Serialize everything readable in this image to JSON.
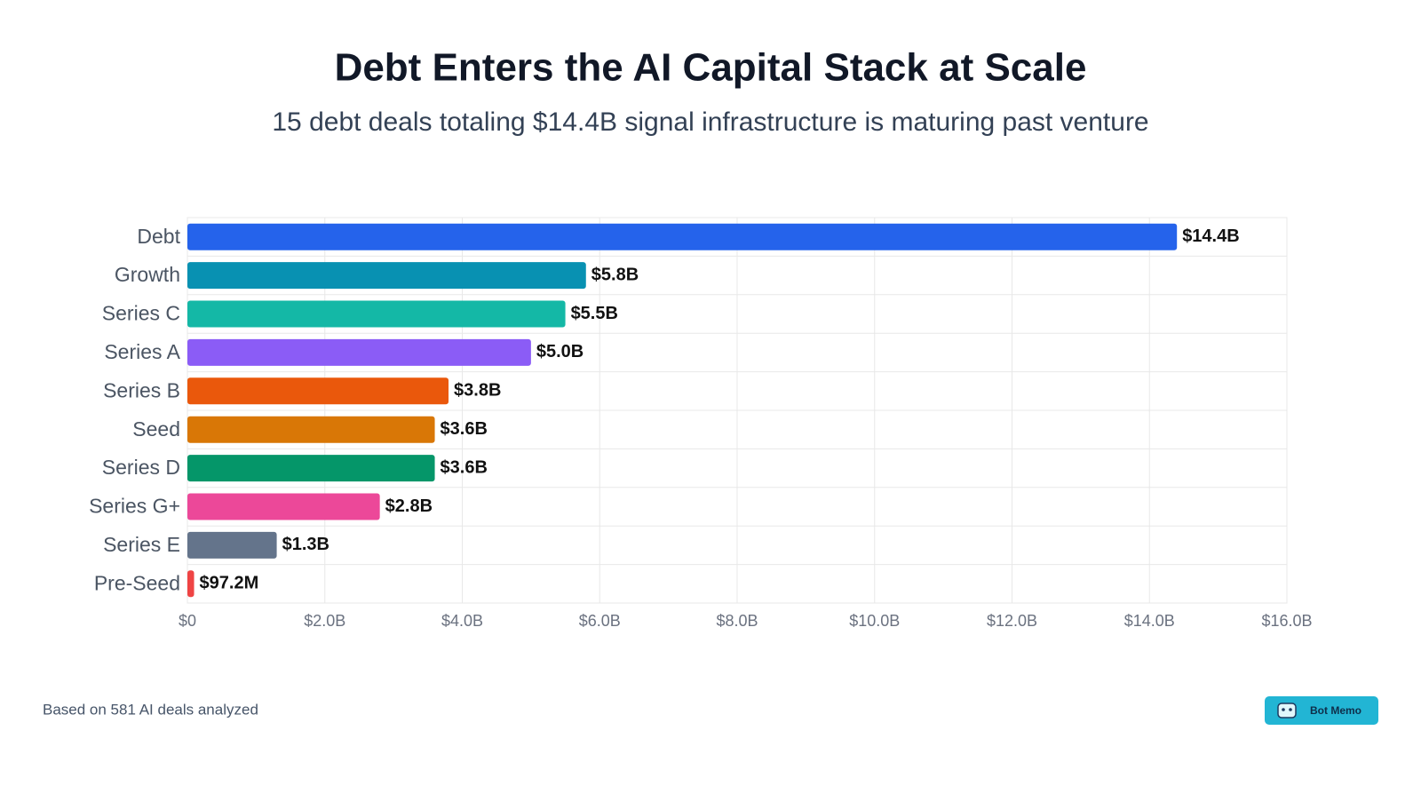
{
  "chart_data": {
    "type": "bar",
    "orientation": "horizontal",
    "title": "Debt Enters the AI Capital Stack at Scale",
    "subtitle": "15 debt deals totaling $14.4B signal infrastructure is maturing past venture",
    "categories": [
      "Debt",
      "Growth",
      "Series C",
      "Series A",
      "Series B",
      "Seed",
      "Series D",
      "Series G+",
      "Series E",
      "Pre-Seed"
    ],
    "values": [
      14.4,
      5.8,
      5.5,
      5.0,
      3.8,
      3.6,
      3.6,
      2.8,
      1.3,
      0.0972
    ],
    "value_labels": [
      "$14.4B",
      "$5.8B",
      "$5.5B",
      "$5.0B",
      "$3.8B",
      "$3.6B",
      "$3.6B",
      "$2.8B",
      "$1.3B",
      "$97.2M"
    ],
    "colors": [
      "#2563eb",
      "#0891b2",
      "#14b8a6",
      "#8b5cf6",
      "#ea580c",
      "#d97706",
      "#059669",
      "#ec4899",
      "#64748b",
      "#ef4444"
    ],
    "xlim": [
      0,
      16
    ],
    "xticks": [
      {
        "value": 0,
        "label": "$0"
      },
      {
        "value": 2,
        "label": "$2.0B"
      },
      {
        "value": 4,
        "label": "$4.0B"
      },
      {
        "value": 6,
        "label": "$6.0B"
      },
      {
        "value": 8,
        "label": "$8.0B"
      },
      {
        "value": 10,
        "label": "$10.0B"
      },
      {
        "value": 12,
        "label": "$12.0B"
      },
      {
        "value": 14,
        "label": "$14.0B"
      },
      {
        "value": 16,
        "label": "$16.0B"
      }
    ],
    "grid": true
  },
  "footer": {
    "note": "Based on 581 AI deals analyzed",
    "brand": "Bot Memo"
  }
}
